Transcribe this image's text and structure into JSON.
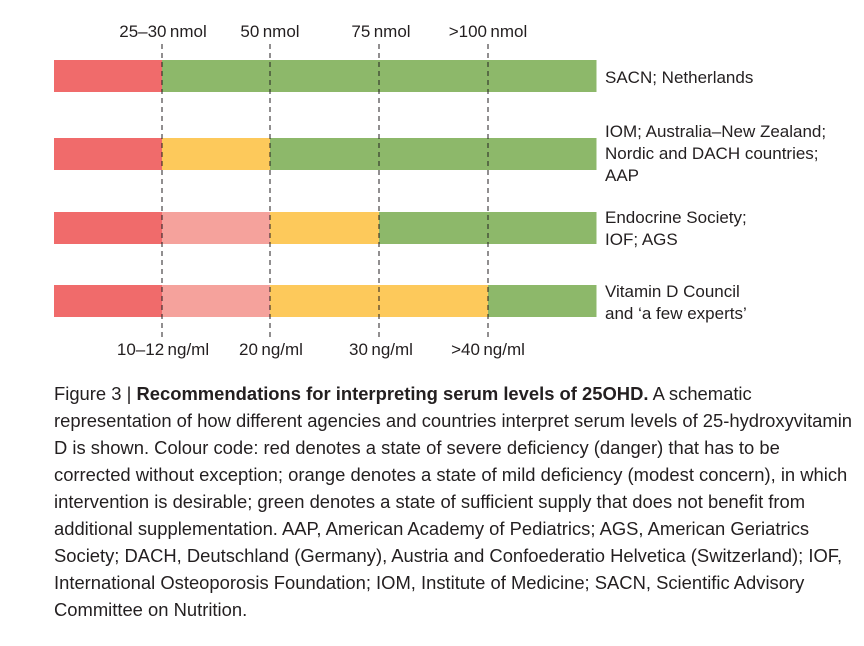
{
  "colors": {
    "red": "#f06b6b",
    "light_red": "#f5a29c",
    "orange": "#fdc95b",
    "green": "#8db86a",
    "text": "#231f20"
  },
  "top_labels": [
    "25–30 nmol",
    "50 nmol",
    "75 nmol",
    ">100 nmol"
  ],
  "bottom_labels": [
    "10–12 ng/ml",
    "20 ng/ml",
    "30 ng/ml",
    ">40 ng/ml"
  ],
  "rows": [
    {
      "segments": [
        "red",
        "green",
        "green",
        "green",
        "green"
      ],
      "label_lines": [
        "SACN; Netherlands"
      ]
    },
    {
      "segments": [
        "red",
        "orange",
        "green",
        "green",
        "green"
      ],
      "label_lines": [
        "IOM; Australia–New Zealand;",
        "Nordic and DACH countries;",
        "AAP"
      ]
    },
    {
      "segments": [
        "red",
        "light_red",
        "orange",
        "green",
        "green"
      ],
      "label_lines": [
        "Endocrine Society;",
        "IOF; AGS"
      ]
    },
    {
      "segments": [
        "red",
        "light_red",
        "orange",
        "orange",
        "green"
      ],
      "label_lines": [
        "Vitamin D Council",
        "and ‘a few experts’"
      ]
    }
  ],
  "caption": {
    "figure_number": "Figure 3 | ",
    "title": "Recommendations for interpreting serum levels of 25OHD.",
    "body": " A schematic representation of how different agencies and countries interpret serum levels of 25-hydroxyvitamin D is shown. Colour code: red denotes a state of severe deficiency (danger) that has to be corrected without exception; orange denotes a state of mild deficiency (modest concern), in which intervention is desirable; green denotes a state of sufficient supply that does not benefit from additional supplementation. AAP, American Academy of Pediatrics; AGS, American Geriatrics Society; DACH, Deutschland (Germany), Austria and Confoederatio Helvetica (Switzerland); IOF, International Osteoporosis Foundation; IOM, Institute of Medicine; SACN, Scientific Advisory Committee on Nutrition."
  }
}
